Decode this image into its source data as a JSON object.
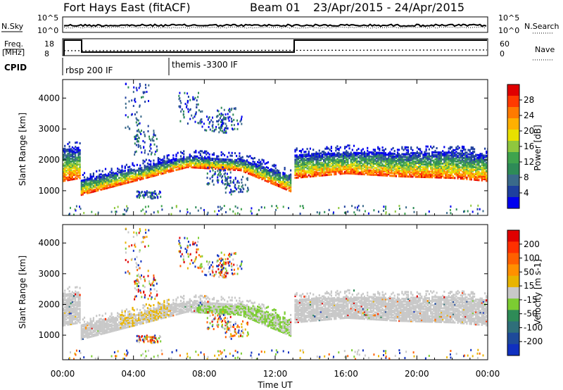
{
  "header": {
    "station": "Fort Hays East (fitACF)",
    "beam": "Beam 01",
    "date_range": "23/Apr/2015 - 24/Apr/2015"
  },
  "status_panels": {
    "nsky_label": "N.Sky",
    "nsearch_label": "N.Search",
    "freq_label_top": "Freq.",
    "freq_label_unit": "[MHz]",
    "nave_label": "Nave",
    "cpid_label": "CPID",
    "noise_left_ticks": [
      "10^5",
      "10^0"
    ],
    "noise_right_ticks": [
      "10^5",
      "10^0"
    ],
    "freq_ticks": [
      "18",
      "8"
    ],
    "nave_ticks": [
      "60",
      "0"
    ],
    "cpid_segments": [
      {
        "name": "rbsp 200 IF",
        "start_hour": 0,
        "end_hour": 6
      },
      {
        "name": "themis -3300 IF",
        "start_hour": 6,
        "end_hour": 24
      }
    ]
  },
  "colorbars": {
    "power": {
      "label": "Power [dB]",
      "ticks": [
        "28",
        "24",
        "20",
        "16",
        "12",
        "8",
        "4"
      ],
      "colors": [
        "#0000ee",
        "#1e3f9e",
        "#3a6a8a",
        "#2e8b57",
        "#3fa34d",
        "#8fc73e",
        "#e8e000",
        "#ffb000",
        "#ff7a00",
        "#ff3a00",
        "#e00000"
      ]
    },
    "velocity": {
      "label": "Velocity [m s-1]",
      "ticks": [
        "200",
        "100",
        "50",
        "15",
        "-15",
        "-50",
        "-100",
        "-200"
      ],
      "colors": [
        "#1030c0",
        "#1e4a9a",
        "#2f6f7a",
        "#2e8b57",
        "#7ccd32",
        "#c8c8c8",
        "#e8b400",
        "#ff9000",
        "#ff6000",
        "#ff3000",
        "#e00000"
      ]
    }
  },
  "chart_data": [
    {
      "type": "heatmap",
      "panel": "power",
      "ylabel": "Slant Range [km]",
      "ylim": [
        200,
        4600
      ],
      "yticks": [
        1000,
        2000,
        3000,
        4000
      ],
      "xlim_hours": [
        0,
        24
      ],
      "data_gap_hours": [
        [
          12.9,
          13.05
        ]
      ],
      "echo_bands": [
        {
          "x_hours": [
            0.0,
            1.0
          ],
          "y_low_km": [
            1350,
            1450
          ],
          "y_high_km": [
            2400,
            2400
          ]
        },
        {
          "x_hours": [
            1.0,
            4.0,
            7.0,
            10.0,
            12.9
          ],
          "y_low_km": [
            900,
            1350,
            1800,
            1700,
            1000
          ],
          "y_high_km": [
            1400,
            1750,
            2150,
            2050,
            1550
          ]
        },
        {
          "x_hours": [
            13.05,
            16.0,
            19.0,
            22.0,
            24.0
          ],
          "y_low_km": [
            1450,
            1600,
            1500,
            1450,
            1350
          ],
          "y_high_km": [
            2200,
            2300,
            2250,
            2300,
            2200
          ]
        }
      ],
      "color_range_db": [
        0,
        30
      ]
    },
    {
      "type": "heatmap",
      "panel": "velocity",
      "ylabel": "Slant Range [km]",
      "xlabel": "Time UT",
      "ylim": [
        200,
        4600
      ],
      "yticks": [
        1000,
        2000,
        3000,
        4000
      ],
      "xticks": [
        "00:00",
        "04:00",
        "08:00",
        "12:00",
        "16:00",
        "20:00",
        "00:00"
      ],
      "xlim_hours": [
        0,
        24
      ],
      "data_gap_hours": [
        [
          12.9,
          13.05
        ]
      ],
      "color_range_ms": [
        -200,
        200
      ]
    }
  ]
}
